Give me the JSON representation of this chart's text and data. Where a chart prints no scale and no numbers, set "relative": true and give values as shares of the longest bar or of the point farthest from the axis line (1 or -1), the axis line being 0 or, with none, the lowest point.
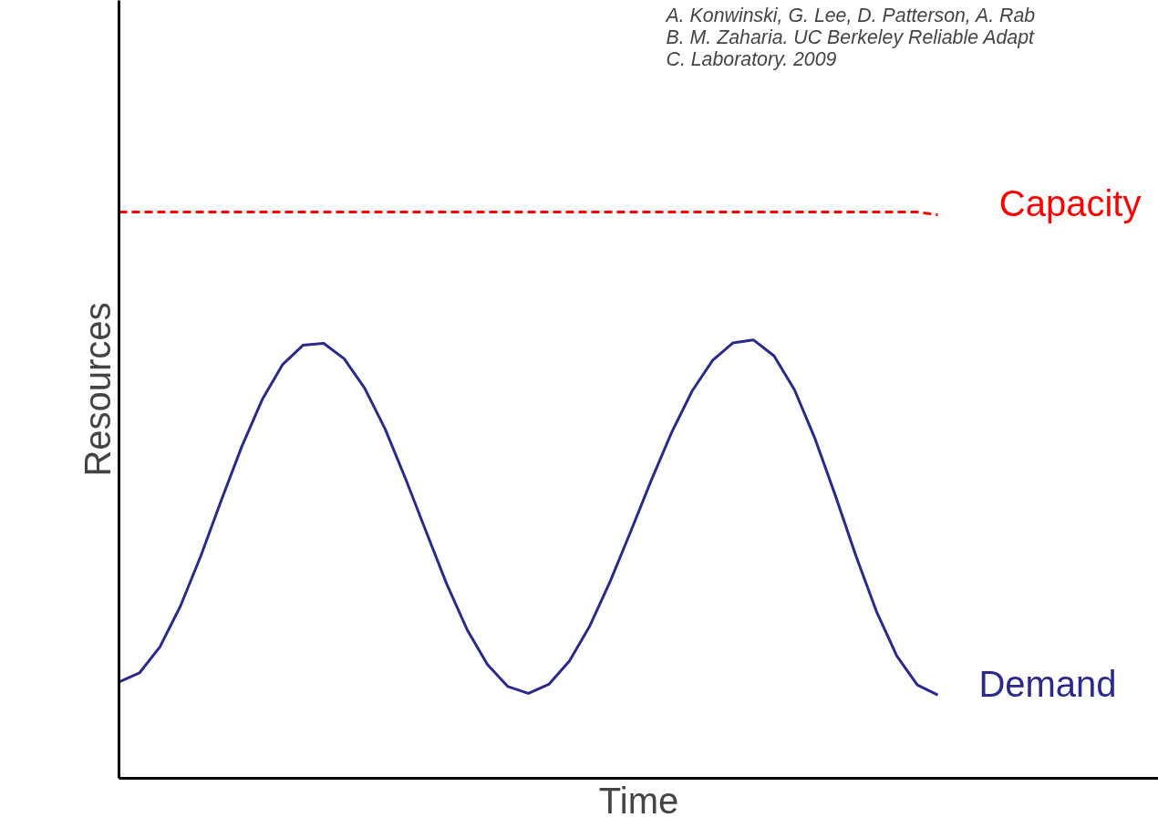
{
  "chart_data": {
    "type": "line",
    "relative": true,
    "xlabel": "Time",
    "ylabel": "Resources",
    "categories": [
      null,
      null,
      null,
      null,
      null,
      null,
      null,
      null,
      null,
      null,
      null,
      null,
      null,
      null,
      null,
      null,
      null,
      null,
      null,
      null,
      null,
      null,
      null,
      null,
      null,
      null,
      null,
      null,
      null,
      null,
      null,
      null,
      null,
      null,
      null,
      null,
      null,
      null,
      null,
      null,
      null
    ],
    "series": [
      {
        "name": "Capacity",
        "color": "#ff0000",
        "line_style": "dashed",
        "values": [
          1,
          1,
          1,
          1,
          1,
          1,
          1,
          1,
          1,
          1,
          1,
          1,
          1,
          1,
          1,
          1,
          1,
          1,
          1,
          1,
          1,
          1,
          1,
          1,
          1,
          1,
          1,
          1,
          1,
          1,
          1,
          1,
          1,
          1,
          1,
          1,
          1,
          1,
          1,
          1,
          0.995
        ]
      },
      {
        "name": "Demand",
        "color": "#2a2a8c",
        "line_style": "solid",
        "values": [
          0.17,
          0.186,
          0.232,
          0.304,
          0.393,
          0.491,
          0.586,
          0.669,
          0.731,
          0.765,
          0.768,
          0.741,
          0.689,
          0.617,
          0.529,
          0.436,
          0.344,
          0.263,
          0.201,
          0.162,
          0.15,
          0.166,
          0.207,
          0.269,
          0.348,
          0.436,
          0.526,
          0.611,
          0.684,
          0.738,
          0.769,
          0.774,
          0.746,
          0.686,
          0.6,
          0.499,
          0.393,
          0.295,
          0.216,
          0.165,
          0.147
        ]
      }
    ],
    "annotations": [
      "A.      Konwinski, G. Lee, D. Patterson, A. Rab",
      "B.      M. Zaharia. UC Berkeley Reliable Adapt",
      "C.      Laboratory. 2009"
    ]
  }
}
